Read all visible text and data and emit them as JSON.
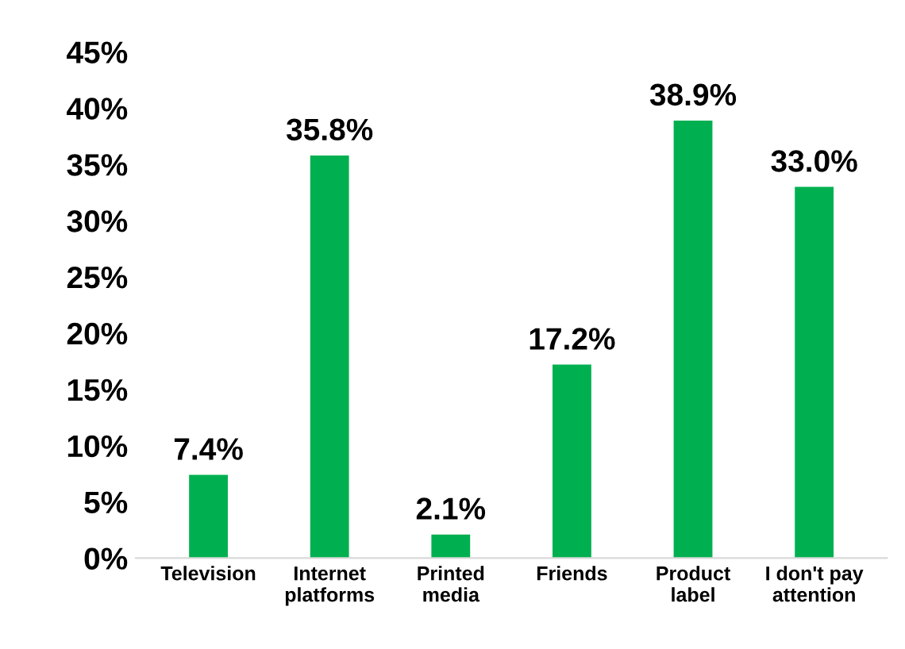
{
  "chart_data": {
    "type": "bar",
    "categories": [
      "Television",
      "Internet\nplatforms",
      "Printed\nmedia",
      "Friends",
      "Product\nlabel",
      "I don't pay\nattention"
    ],
    "values": [
      7.4,
      35.8,
      2.1,
      17.2,
      38.9,
      33.0
    ],
    "value_labels": [
      "7.4%",
      "35.8%",
      "2.1%",
      "17.2%",
      "38.9%",
      "33.0%"
    ],
    "color": "#00b050",
    "ylim": [
      0,
      45
    ],
    "yticks": [
      {
        "value": 0,
        "label": "0%"
      },
      {
        "value": 5,
        "label": "5%"
      },
      {
        "value": 10,
        "label": "10%"
      },
      {
        "value": 15,
        "label": "15%"
      },
      {
        "value": 20,
        "label": "20%"
      },
      {
        "value": 25,
        "label": "25%"
      },
      {
        "value": 30,
        "label": "30%"
      },
      {
        "value": 35,
        "label": "35%"
      },
      {
        "value": 40,
        "label": "40%"
      },
      {
        "value": 45,
        "label": "45%"
      }
    ],
    "grid": false,
    "legend": false
  }
}
